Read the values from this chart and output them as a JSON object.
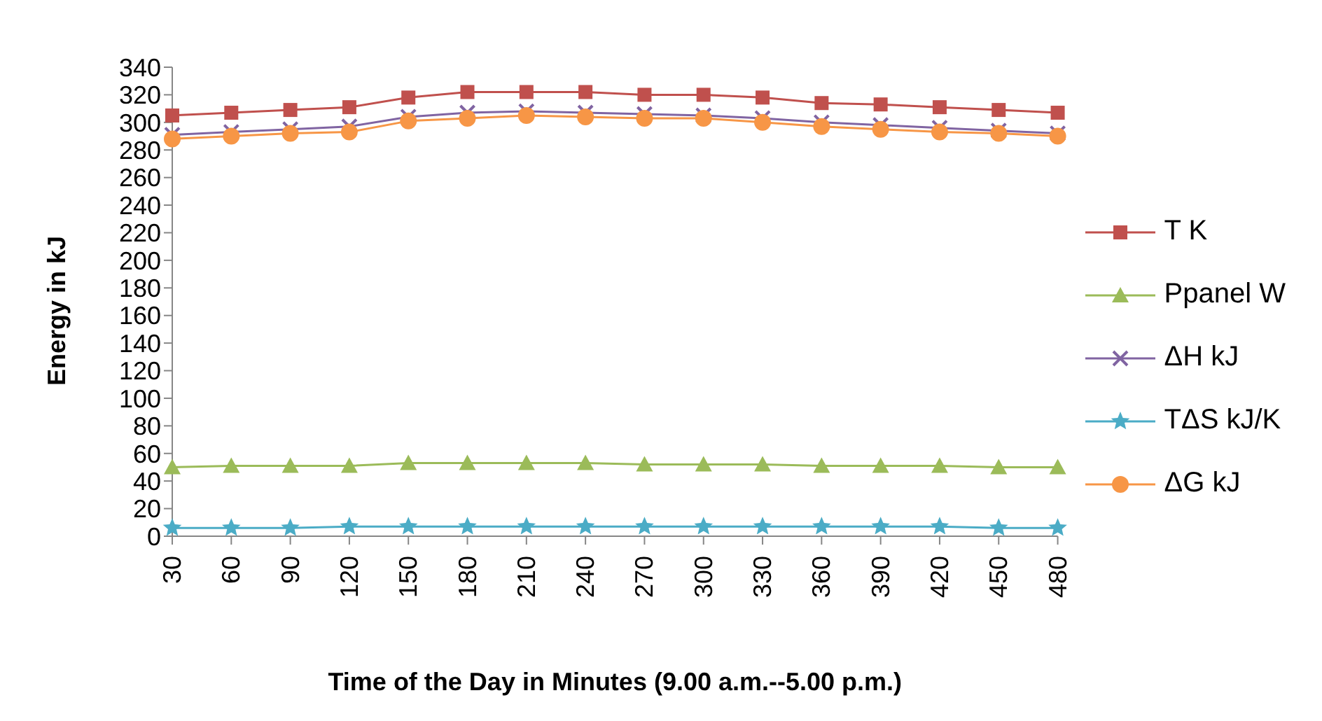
{
  "chart_data": {
    "type": "line",
    "xlabel": "Time of the Day in Minutes (9.00 a.m.--5.00 p.m.)",
    "ylabel": "Energy in kJ",
    "categories": [
      "30",
      "60",
      "90",
      "120",
      "150",
      "180",
      "210",
      "240",
      "270",
      "300",
      "330",
      "360",
      "390",
      "420",
      "450",
      "480"
    ],
    "series": [
      {
        "name": "T K",
        "color": "#c0504d",
        "marker": "square",
        "values": [
          305,
          307,
          309,
          311,
          318,
          322,
          322,
          322,
          320,
          320,
          318,
          314,
          313,
          311,
          309,
          307
        ]
      },
      {
        "name": "Ppanel W",
        "color": "#9bbb59",
        "marker": "triangle",
        "values": [
          50,
          51,
          51,
          51,
          53,
          53,
          53,
          53,
          52,
          52,
          52,
          51,
          51,
          51,
          50,
          50
        ]
      },
      {
        "name": "ΔH kJ",
        "color": "#8064a2",
        "marker": "cross",
        "values": [
          291,
          293,
          295,
          297,
          304,
          307,
          308,
          307,
          306,
          305,
          303,
          300,
          298,
          296,
          294,
          292
        ]
      },
      {
        "name": "TΔS kJ/K",
        "color": "#4bacc6",
        "marker": "star",
        "values": [
          6,
          6,
          6,
          7,
          7,
          7,
          7,
          7,
          7,
          7,
          7,
          7,
          7,
          7,
          6,
          6
        ]
      },
      {
        "name": "ΔG kJ",
        "color": "#f79646",
        "marker": "circle",
        "values": [
          288,
          290,
          292,
          293,
          301,
          303,
          305,
          304,
          303,
          303,
          300,
          297,
          295,
          293,
          292,
          290
        ]
      }
    ],
    "ylim": [
      0,
      340
    ],
    "yticks": [
      0,
      20,
      40,
      60,
      80,
      100,
      120,
      140,
      160,
      180,
      200,
      220,
      240,
      260,
      280,
      300,
      320,
      340
    ],
    "grid": false,
    "legend": "right"
  }
}
